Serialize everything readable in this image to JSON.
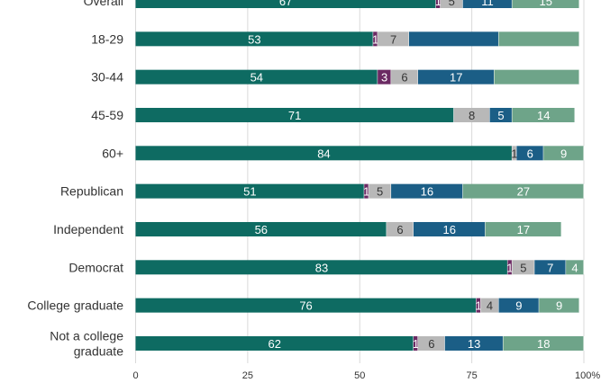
{
  "chart_data": {
    "type": "bar",
    "orientation": "horizontal",
    "stacked": true,
    "categories": [
      "Overall",
      "18-29",
      "30-44",
      "45-59",
      "60+",
      "Republican",
      "Independent",
      "Democrat",
      "College graduate",
      "Not a college graduate"
    ],
    "series": [
      {
        "color": "#0e6b62",
        "label_color": "#ffffff",
        "values": [
          67,
          53,
          54,
          71,
          84,
          51,
          56,
          83,
          76,
          62
        ]
      },
      {
        "color": "#6b2a63",
        "label_color": "#ffffff",
        "values": [
          1,
          1,
          3,
          0,
          0,
          1,
          0,
          1,
          1,
          1
        ]
      },
      {
        "color": "#b8b8b8",
        "label_color": "#333333",
        "values": [
          5,
          7,
          6,
          8,
          1,
          5,
          6,
          5,
          4,
          6
        ]
      },
      {
        "color": "#1b5e86",
        "label_color": "#ffffff",
        "values": [
          11,
          20,
          17,
          5,
          6,
          16,
          16,
          7,
          9,
          13
        ]
      },
      {
        "color": "#6ea489",
        "label_color": "#ffffff",
        "values": [
          15,
          18,
          19,
          14,
          9,
          27,
          17,
          4,
          9,
          18
        ]
      }
    ],
    "hidden_labels": [
      [
        1,
        3
      ],
      [
        1,
        4
      ],
      [
        1,
        6
      ],
      [
        2,
        4
      ]
    ],
    "xlim": [
      0,
      100
    ],
    "xticks": [
      0,
      25,
      50,
      75,
      100
    ],
    "xtick_labels": [
      "0",
      "25",
      "50",
      "75",
      "100%"
    ],
    "grid": true,
    "legend": "none"
  }
}
